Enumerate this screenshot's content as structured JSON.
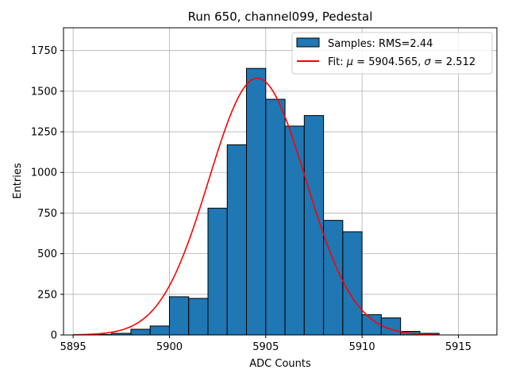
{
  "chart_data": {
    "type": "bar",
    "title": "Run 650, channel099, Pedestal",
    "xlabel": "ADC Counts",
    "ylabel": "Entries",
    "xlim": [
      5894.5,
      5917
    ],
    "ylim": [
      0,
      1890
    ],
    "xticks": [
      5895,
      5900,
      5905,
      5910,
      5915
    ],
    "yticks": [
      0,
      250,
      500,
      750,
      1000,
      1250,
      1500,
      1750
    ],
    "grid": true,
    "legend_position": "top-right",
    "histogram": {
      "name": "Samples: RMS=2.44",
      "color": "#1f77b4",
      "bin_width": 1,
      "bin_edges_start": 5896,
      "values": [
        3,
        10,
        35,
        55,
        235,
        225,
        780,
        1170,
        1640,
        1450,
        1285,
        1350,
        705,
        635,
        125,
        105,
        22,
        10
      ]
    },
    "fit": {
      "name_prefix": "Fit: ",
      "name_rest": " = 5904.565, ",
      "name_tail": " = 2.512",
      "mu_symbol": "μ",
      "sigma_symbol": "σ",
      "mu": 5904.565,
      "sigma": 2.512,
      "amplitude": 1580,
      "x_range": [
        5895,
        5914
      ],
      "color": "#ff0000"
    }
  }
}
